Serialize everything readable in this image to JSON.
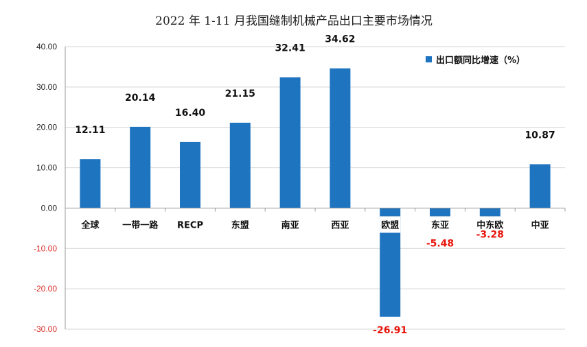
{
  "chart_data": {
    "type": "bar",
    "title": "2022 年 1-11 月我国缝制机械产品出口主要市场情况",
    "categories": [
      "全球",
      "一带一路",
      "RECP",
      "东盟",
      "南亚",
      "西亚",
      "欧盟",
      "东亚",
      "中东欧",
      "中亚"
    ],
    "series": [
      {
        "name": "出口额同比增速（%）",
        "values": [
          12.11,
          20.14,
          16.4,
          21.15,
          32.41,
          34.62,
          -26.91,
          -5.48,
          -3.28,
          10.87
        ],
        "labels": [
          "12.11",
          "20.14",
          "16.40",
          "21.15",
          "32.41",
          "34.62",
          "-26.91",
          "-5.48",
          "-3.28",
          "10.87"
        ]
      }
    ],
    "yticks": [
      "40.00",
      "30.00",
      "20.00",
      "10.00",
      "0.00",
      "-10.00",
      "-20.00",
      "-30.00"
    ],
    "ytick_values": [
      40,
      30,
      20,
      10,
      0,
      -10,
      -20,
      -30
    ],
    "ylim": [
      -30,
      40
    ],
    "grid": true,
    "legend": "top-right",
    "xlabel": "",
    "ylabel": ""
  },
  "colors": {
    "bar": "#1f74c0",
    "positive_label": "#111111",
    "negative_label": "#e8150b",
    "grid": "#d4d4d4",
    "axis": "#9a9a9a",
    "negative_tick": "#d9302a",
    "positive_tick": "#222222"
  }
}
